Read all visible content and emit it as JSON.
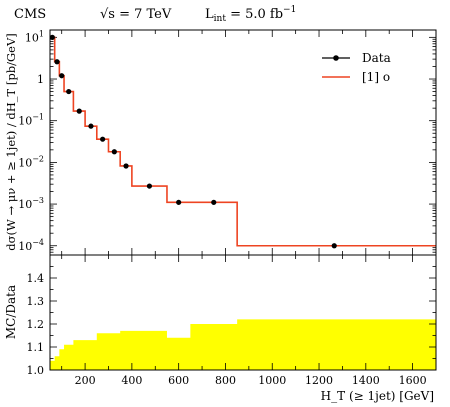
{
  "header": {
    "experiment": "CMS",
    "energy_label": "√s = 7 TeV",
    "lumi_label": "L",
    "lumi_sub": "int",
    "lumi_value": " = 5.0 fb",
    "lumi_sup": "−1"
  },
  "chart_data": [
    {
      "type": "line",
      "title": "",
      "ylabel": "dσ(W → μν + ≥ 1jet) / dH_T [pb/GeV]",
      "yscale": "log",
      "ylim": [
        6e-05,
        15
      ],
      "xlim": [
        50,
        1700
      ],
      "yticks": [
        {
          "value": 10,
          "base": "10",
          "exp": "1"
        },
        {
          "value": 1,
          "base": "1",
          "exp": ""
        },
        {
          "value": 0.1,
          "base": "10",
          "exp": "−1"
        },
        {
          "value": 0.01,
          "base": "10",
          "exp": "−2"
        },
        {
          "value": 0.001,
          "base": "10",
          "exp": "−3"
        },
        {
          "value": 0.0001,
          "base": "10",
          "exp": "−4"
        }
      ],
      "legend": {
        "placement": "top-right",
        "entries": [
          {
            "label": "Data",
            "color": "#000000",
            "marker": "dot"
          },
          {
            "label": "[1] o",
            "color": "#ee4422",
            "marker": "line"
          }
        ]
      },
      "series": [
        {
          "name": "Data",
          "color": "#000000",
          "x": [
            60,
            80,
            100,
            130,
            175,
            225,
            275,
            325,
            375,
            475,
            600,
            750,
            1265
          ],
          "y": [
            10,
            2.6,
            1.2,
            0.5,
            0.17,
            0.074,
            0.036,
            0.018,
            0.0082,
            0.0027,
            0.0011,
            0.0011,
            0.0001
          ]
        },
        {
          "name": "[1] o",
          "color": "#ee4422",
          "bin_edges": [
            50,
            70,
            90,
            110,
            150,
            200,
            250,
            300,
            350,
            400,
            550,
            650,
            850,
            1700
          ],
          "values": [
            10,
            2.6,
            1.2,
            0.5,
            0.17,
            0.074,
            0.036,
            0.018,
            0.0082,
            0.0027,
            0.0011,
            0.0011,
            0.0001
          ]
        }
      ]
    },
    {
      "type": "area",
      "title": "",
      "xlabel": "H_T (≥ 1jet) [GeV]",
      "ylabel": "MC/Data",
      "ylim": [
        1.0,
        1.5
      ],
      "xlim": [
        50,
        1700
      ],
      "yticks": [
        1.0,
        1.1,
        1.2,
        1.3,
        1.4
      ],
      "xticks": [
        200,
        400,
        600,
        800,
        1000,
        1200,
        1400,
        1600
      ],
      "series": [
        {
          "name": "",
          "color": "#ffff00",
          "bin_edges": [
            50,
            70,
            90,
            110,
            150,
            200,
            250,
            300,
            350,
            400,
            550,
            650,
            850,
            1700
          ],
          "values": [
            1.04,
            1.06,
            1.09,
            1.11,
            1.13,
            1.13,
            1.16,
            1.16,
            1.17,
            1.17,
            1.14,
            1.2,
            1.22
          ]
        }
      ]
    }
  ]
}
